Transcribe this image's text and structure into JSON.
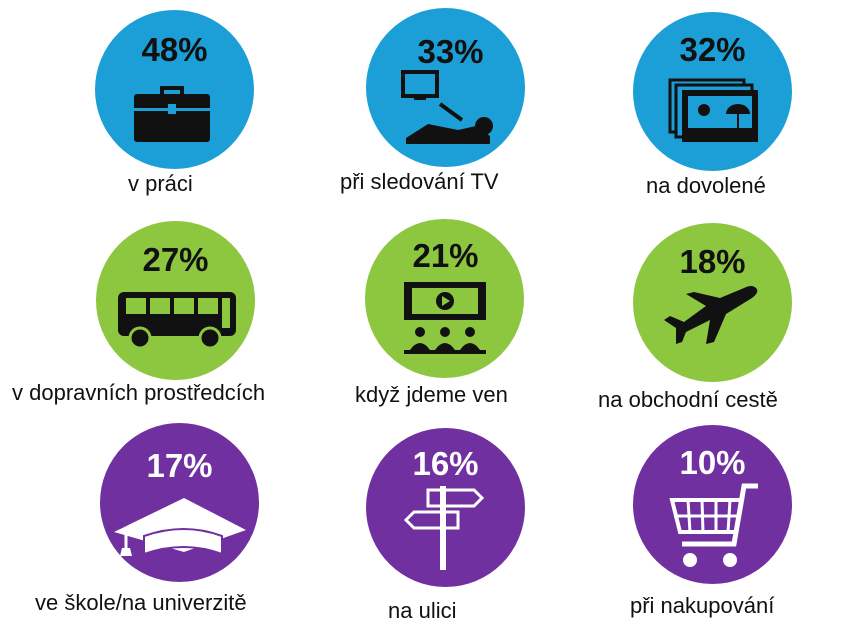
{
  "chart_data": {
    "type": "infographic",
    "categories": [
      "v práci",
      "při sledování TV",
      "na dovolené",
      "v dopravních prostředcích",
      "když jdeme ven",
      "na obchodní cestě",
      "ve škole/na univerzitě",
      "na ulici",
      "při nakupování"
    ],
    "values": [
      48,
      33,
      32,
      27,
      21,
      18,
      17,
      16,
      10
    ],
    "items": [
      {
        "pct": "48%",
        "label": "v práci",
        "color": "#1B9FD6",
        "icon": "briefcase-icon",
        "text_color": "#111111"
      },
      {
        "pct": "33%",
        "label": "při sledování TV",
        "color": "#1B9FD6",
        "icon": "tv-watching-icon",
        "text_color": "#111111"
      },
      {
        "pct": "32%",
        "label": "na dovolené",
        "color": "#1B9FD6",
        "icon": "vacation-photos-icon",
        "text_color": "#111111"
      },
      {
        "pct": "27%",
        "label": "v dopravních prostředcích",
        "color": "#8DC63F",
        "icon": "bus-icon",
        "text_color": "#111111"
      },
      {
        "pct": "21%",
        "label": "když jdeme ven",
        "color": "#8DC63F",
        "icon": "cinema-icon",
        "text_color": "#111111"
      },
      {
        "pct": "18%",
        "label": "na obchodní cestě",
        "color": "#8DC63F",
        "icon": "airplane-icon",
        "text_color": "#111111"
      },
      {
        "pct": "17%",
        "label": "ve škole/na univerzitě",
        "color": "#7030A0",
        "icon": "graduation-cap-icon",
        "text_color": "#ffffff"
      },
      {
        "pct": "16%",
        "label": "na ulici",
        "color": "#7030A0",
        "icon": "signpost-icon",
        "text_color": "#ffffff"
      },
      {
        "pct": "10%",
        "label": "při nakupování",
        "color": "#7030A0",
        "icon": "shopping-cart-icon",
        "text_color": "#ffffff"
      }
    ]
  }
}
